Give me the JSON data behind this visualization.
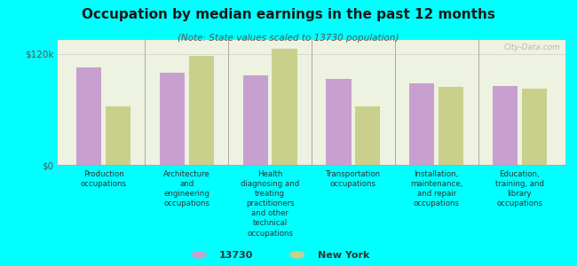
{
  "title": "Occupation by median earnings in the past 12 months",
  "subtitle": "(Note: State values scaled to 13730 population)",
  "categories": [
    "Production\noccupations",
    "Architecture\nand\nengineering\noccupations",
    "Health\ndiagnosing and\ntreating\npractitioners\nand other\ntechnical\noccupations",
    "Transportation\noccupations",
    "Installation,\nmaintenance,\nand repair\noccupations",
    "Education,\ntraining, and\nlibrary\noccupations"
  ],
  "values_13730": [
    105000,
    100000,
    97000,
    93000,
    88000,
    85000
  ],
  "values_ny": [
    63000,
    118000,
    125000,
    63000,
    84000,
    82000
  ],
  "color_13730": "#c8a0d0",
  "color_ny": "#c8d08c",
  "background_color": "#00ffff",
  "plot_bg_color": "#eef2e0",
  "ylabel_120k": "$120k",
  "ylabel_0": "$0",
  "ylim": [
    0,
    135000
  ],
  "tick_120k": 120000,
  "legend_13730": "13730",
  "legend_ny": "New York",
  "watermark": "City-Data.com"
}
